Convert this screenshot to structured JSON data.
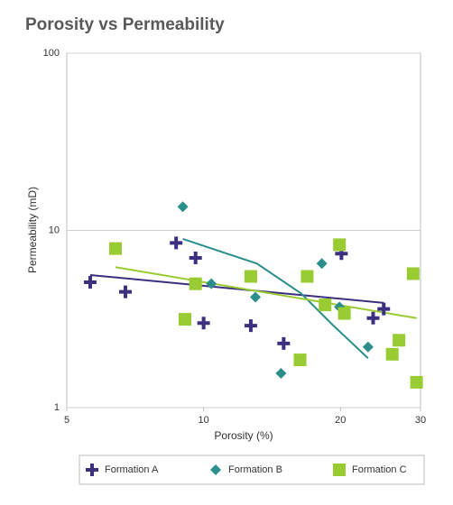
{
  "chart_data": {
    "type": "scatter",
    "title": "Porosity vs Permeability",
    "x_label": "Porosity (%)",
    "y_label": "Permeability (mD)",
    "xscale": "log",
    "yscale": "log",
    "grid": true,
    "xlim": [
      5,
      30
    ],
    "xticks": [
      5,
      10,
      20,
      30
    ],
    "ylim": [
      1,
      100
    ],
    "yticks": [
      1,
      10,
      100
    ],
    "series": [
      {
        "name": "Formation A",
        "color": "#3d2f7f",
        "marker": "plus",
        "x": [
          5.63,
          6.73,
          8.7,
          9.6,
          10.0,
          12.7,
          15.0,
          20.1,
          23.6,
          24.9
        ],
        "values": [
          5.1,
          4.5,
          8.5,
          7.0,
          3.0,
          2.9,
          2.3,
          7.4,
          3.2,
          3.6
        ],
        "trendline": {
          "x": [
            5.63,
            24.9
          ],
          "y": [
            5.6,
            3.9
          ]
        }
      },
      {
        "name": "Formation B",
        "color": "#2a8f8a",
        "marker": "diamond",
        "x": [
          9.0,
          10.4,
          13.0,
          18.2,
          19.9,
          14.8,
          23.0
        ],
        "values": [
          13.6,
          5.0,
          4.2,
          6.5,
          3.7,
          1.56,
          2.2
        ],
        "trendline": {
          "x": [
            9.0,
            13.1,
            16.4,
            19.2,
            23.0
          ],
          "y": [
            8.95,
            6.5,
            4.4,
            2.94,
            1.9
          ]
        }
      },
      {
        "name": "Formation C",
        "color": "#99cc33",
        "marker": "square",
        "x": [
          6.4,
          9.1,
          9.6,
          12.7,
          16.3,
          16.9,
          18.5,
          19.9,
          20.4,
          26.0,
          26.9,
          28.9,
          29.4
        ],
        "values": [
          7.9,
          3.15,
          5.0,
          5.5,
          1.86,
          5.5,
          3.8,
          8.3,
          3.4,
          2.0,
          2.4,
          5.7,
          1.39
        ],
        "trendline": {
          "x": [
            6.4,
            29.4
          ],
          "y": [
            6.2,
            3.2
          ]
        }
      }
    ]
  }
}
